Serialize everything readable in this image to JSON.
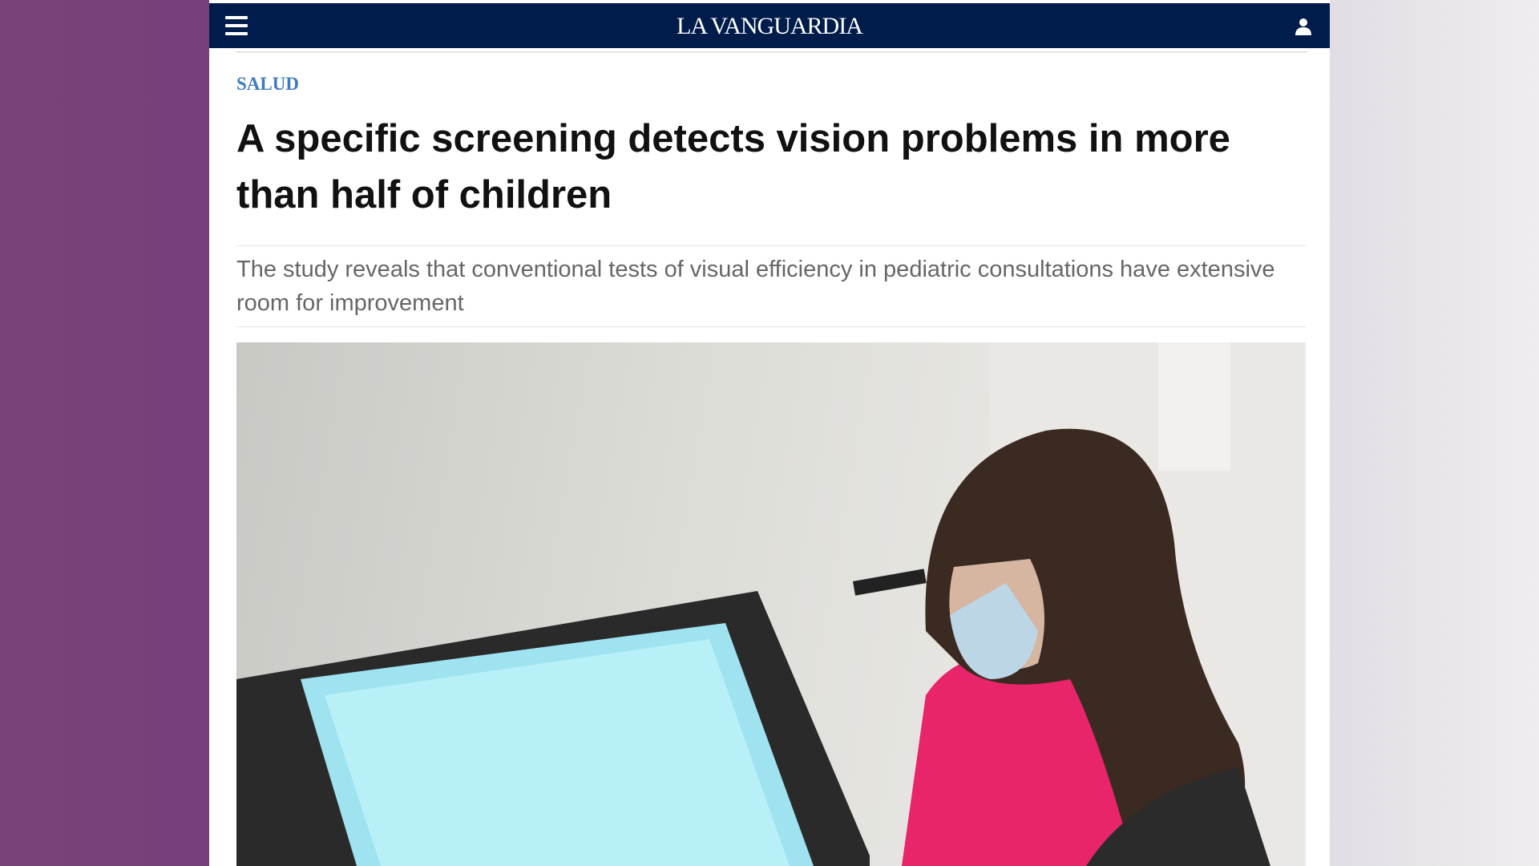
{
  "header": {
    "logo": "LA VANGUARDIA",
    "menu_icon": "hamburger-icon",
    "user_icon": "user-icon"
  },
  "article": {
    "section": "SALUD",
    "title": "A specific screening detects vision problems in more than half of children",
    "subtitle": "The study reveals that conventional tests of visual efficiency in pediatric consultations have extensive room for improvement"
  },
  "colors": {
    "header_bg": "#001c4b",
    "section": "#3f7bbf",
    "side_bg": "#77407a"
  }
}
